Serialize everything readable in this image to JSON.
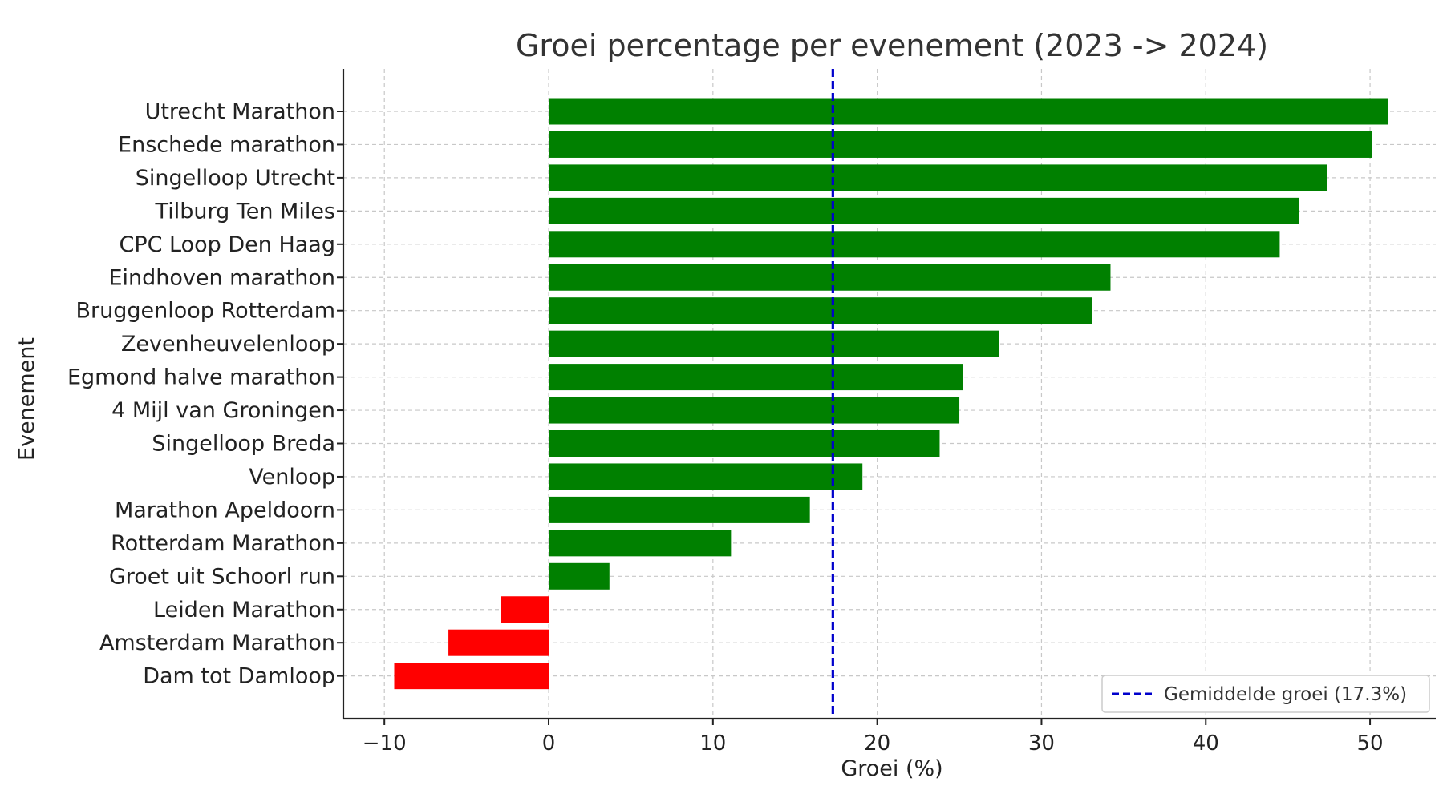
{
  "chart_data": {
    "type": "bar",
    "orientation": "horizontal",
    "title": "Groei percentage per evenement (2023 -> 2024)",
    "xlabel": "Groei (%)",
    "ylabel": "Evenement",
    "xlim": [
      -12.5,
      54.0
    ],
    "xticks": [
      -10,
      0,
      10,
      20,
      30,
      40,
      50
    ],
    "xtick_labels": [
      "−10",
      "0",
      "10",
      "20",
      "30",
      "40",
      "50"
    ],
    "grid": true,
    "categories": [
      "Utrecht Marathon",
      "Enschede marathon",
      "Singelloop Utrecht",
      "Tilburg Ten Miles",
      "CPC Loop Den Haag",
      "Eindhoven marathon",
      "Bruggenloop Rotterdam",
      "Zevenheuvelenloop",
      "Egmond halve marathon",
      "4 Mijl van Groningen",
      "Singelloop Breda",
      "Venloop",
      "Marathon Apeldoorn",
      "Rotterdam Marathon",
      "Groet uit Schoorl run",
      "Leiden Marathon",
      "Amsterdam Marathon",
      "Dam tot Damloop"
    ],
    "values": [
      51.1,
      50.1,
      47.4,
      45.7,
      44.5,
      34.2,
      33.1,
      27.4,
      25.2,
      25.0,
      23.8,
      19.1,
      15.9,
      11.1,
      3.7,
      -2.9,
      -6.1,
      -9.4
    ],
    "colors": {
      "positive": "#008000",
      "negative": "#ff0000"
    },
    "reference_line": {
      "value": 17.3,
      "label": "Gemiddelde groei (17.3%)",
      "color": "#0000cc",
      "style": "dashed"
    },
    "legend_position": "lower right"
  }
}
